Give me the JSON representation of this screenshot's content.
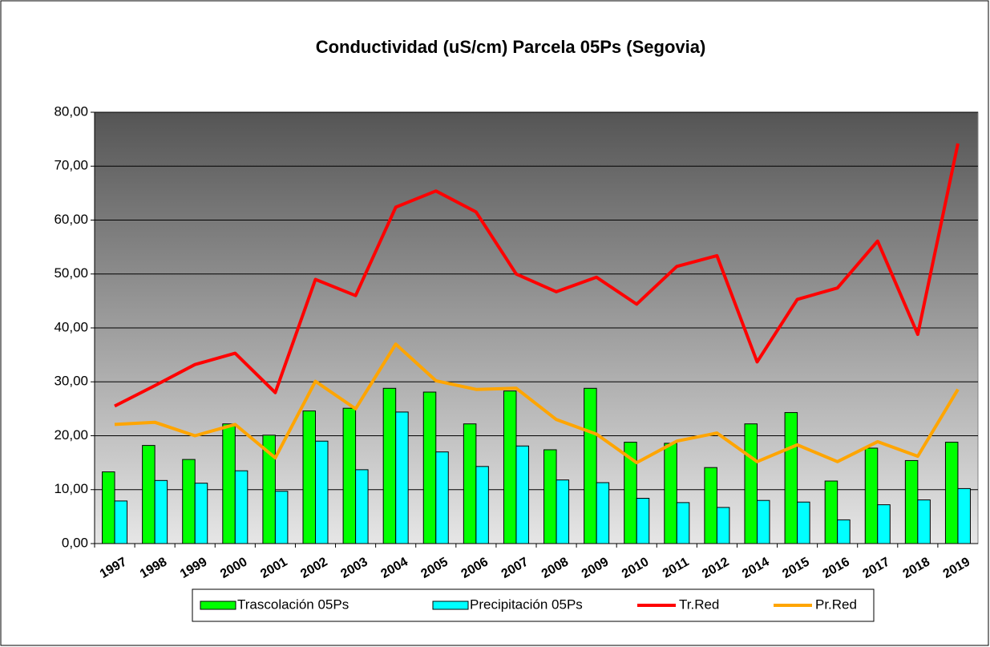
{
  "chart_data": {
    "type": "bar",
    "title": "Conductividad (uS/cm) Parcela 05Ps (Segovia)",
    "categories": [
      "1997",
      "1998",
      "1999",
      "2000",
      "2001",
      "2002",
      "2003",
      "2004",
      "2005",
      "2006",
      "2007",
      "2008",
      "2009",
      "2010",
      "2011",
      "2012",
      "2014",
      "2015",
      "2016",
      "2017",
      "2018",
      "2019"
    ],
    "series": [
      {
        "name": "Trascolación  05Ps",
        "type": "bar",
        "color": "#00ff00",
        "values": [
          13.3,
          18.2,
          15.6,
          22.2,
          20.1,
          24.6,
          25.1,
          28.8,
          28.1,
          22.2,
          28.3,
          17.4,
          28.8,
          18.8,
          18.6,
          14.1,
          22.2,
          24.3,
          11.6,
          17.7,
          15.4,
          18.8
        ]
      },
      {
        "name": "Precipitación 05Ps",
        "type": "bar",
        "color": "#00ffff",
        "values": [
          7.9,
          11.7,
          11.2,
          13.5,
          9.7,
          19.0,
          13.7,
          24.4,
          17.0,
          14.3,
          18.1,
          11.8,
          11.3,
          8.4,
          7.6,
          6.7,
          8.0,
          7.7,
          4.4,
          7.2,
          8.1,
          10.2
        ]
      },
      {
        "name": "Tr.Red",
        "type": "line",
        "color": "#ff0000",
        "values": [
          25.5,
          29.3,
          33.2,
          35.3,
          28.0,
          49.0,
          46.0,
          62.4,
          65.4,
          61.5,
          50.0,
          46.7,
          49.4,
          44.4,
          51.4,
          53.4,
          33.7,
          45.3,
          47.4,
          56.1,
          38.8,
          74.2
        ]
      },
      {
        "name": "Pr.Red",
        "type": "line",
        "color": "#ffa500",
        "values": [
          22.1,
          22.5,
          20.0,
          22.1,
          15.9,
          30.1,
          25.0,
          37.0,
          30.2,
          28.6,
          28.8,
          23.0,
          20.3,
          15.0,
          19.0,
          20.5,
          15.2,
          18.3,
          15.2,
          18.9,
          16.2,
          28.6
        ]
      }
    ],
    "ylim": [
      0,
      80
    ],
    "yticks": [
      {
        "value": 0,
        "label": "0,00"
      },
      {
        "value": 10,
        "label": "10,00"
      },
      {
        "value": 20,
        "label": "20,00"
      },
      {
        "value": 30,
        "label": "30,00"
      },
      {
        "value": 40,
        "label": "40,00"
      },
      {
        "value": 50,
        "label": "50,00"
      },
      {
        "value": 60,
        "label": "60,00"
      },
      {
        "value": 70,
        "label": "70,00"
      },
      {
        "value": 80,
        "label": "80,00"
      }
    ],
    "grid": true,
    "legend": "bottom"
  }
}
